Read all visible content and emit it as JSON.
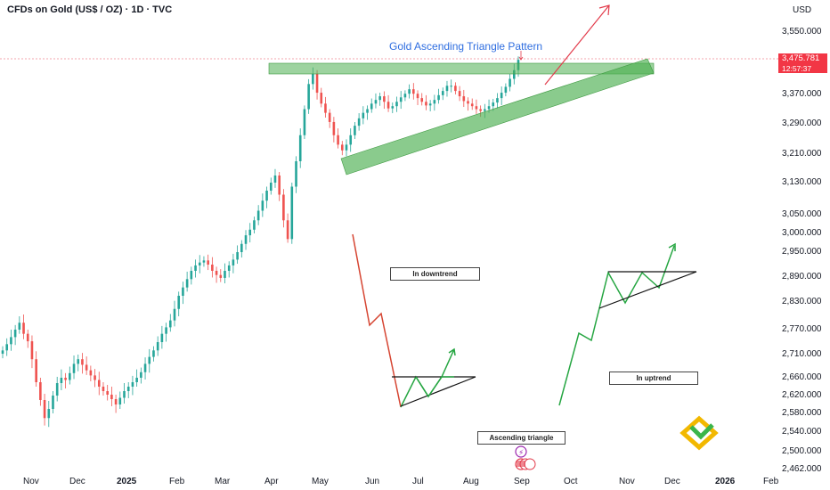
{
  "header": {
    "symbol_line": "CFDs on Gold (US$ / OZ) · 1D · TVC",
    "currency": "USD"
  },
  "annotations": {
    "pattern_title": "Gold Ascending Triangle Pattern",
    "downtrend_label": "In downtrend",
    "uptrend_label": "In uptrend",
    "triangle_label": "Ascending triangle"
  },
  "price_tag": {
    "price": "3,475.781",
    "countdown": "12:57:37"
  },
  "colors": {
    "up": "#26a69a",
    "down": "#ef5350",
    "zone": "#4caf50",
    "arrow": "#e23a4a",
    "title": "#2f6ee0"
  },
  "icons": [
    "logo-icon",
    "flash-event-icon",
    "us-flag-event-icon"
  ],
  "chart_data": {
    "type": "candlestick",
    "price_axis": [
      "3,550.000",
      "3,370.000",
      "3,290.000",
      "3,210.000",
      "3,130.000",
      "3,050.000",
      "3,000.000",
      "2,950.000",
      "2,890.000",
      "2,830.000",
      "2,770.000",
      "2,710.000",
      "2,660.000",
      "2,620.000",
      "2,580.000",
      "2,540.000",
      "2,500.000",
      "2,462.000"
    ],
    "time_axis": [
      "Nov",
      "Dec",
      "2025",
      "Feb",
      "Mar",
      "Apr",
      "May",
      "Jun",
      "Jul",
      "Aug",
      "Sep",
      "Oct",
      "Nov",
      "Dec",
      "2026",
      "Feb"
    ],
    "last_price": 3475.781,
    "resistance_level": 3440,
    "support_trendline": {
      "from": [
        "2025-05-15",
        3180
      ],
      "to": [
        "2025-12-18",
        3480
      ]
    },
    "closes": [
      2720,
      2735,
      2752,
      2770,
      2785,
      2760,
      2742,
      2700,
      2650,
      2610,
      2570,
      2590,
      2620,
      2648,
      2660,
      2655,
      2670,
      2690,
      2700,
      2688,
      2676,
      2665,
      2655,
      2640,
      2630,
      2622,
      2612,
      2600,
      2615,
      2630,
      2640,
      2650,
      2660,
      2672,
      2690,
      2705,
      2720,
      2740,
      2760,
      2775,
      2790,
      2815,
      2845,
      2865,
      2885,
      2905,
      2918,
      2925,
      2930,
      2920,
      2905,
      2895,
      2888,
      2905,
      2918,
      2932,
      2950,
      2972,
      2995,
      3010,
      3035,
      3060,
      3085,
      3110,
      3130,
      3150,
      3100,
      3035,
      2985,
      3120,
      3190,
      3260,
      3330,
      3400,
      3430,
      3375,
      3345,
      3320,
      3295,
      3260,
      3235,
      3220,
      3235,
      3260,
      3285,
      3305,
      3320,
      3330,
      3345,
      3355,
      3365,
      3350,
      3332,
      3338,
      3350,
      3362,
      3372,
      3385,
      3372,
      3360,
      3350,
      3340,
      3345,
      3355,
      3368,
      3380,
      3395,
      3395,
      3380,
      3365,
      3352,
      3345,
      3338,
      3330,
      3325,
      3330,
      3338,
      3348,
      3360,
      3375,
      3392,
      3415,
      3440,
      3470
    ]
  }
}
